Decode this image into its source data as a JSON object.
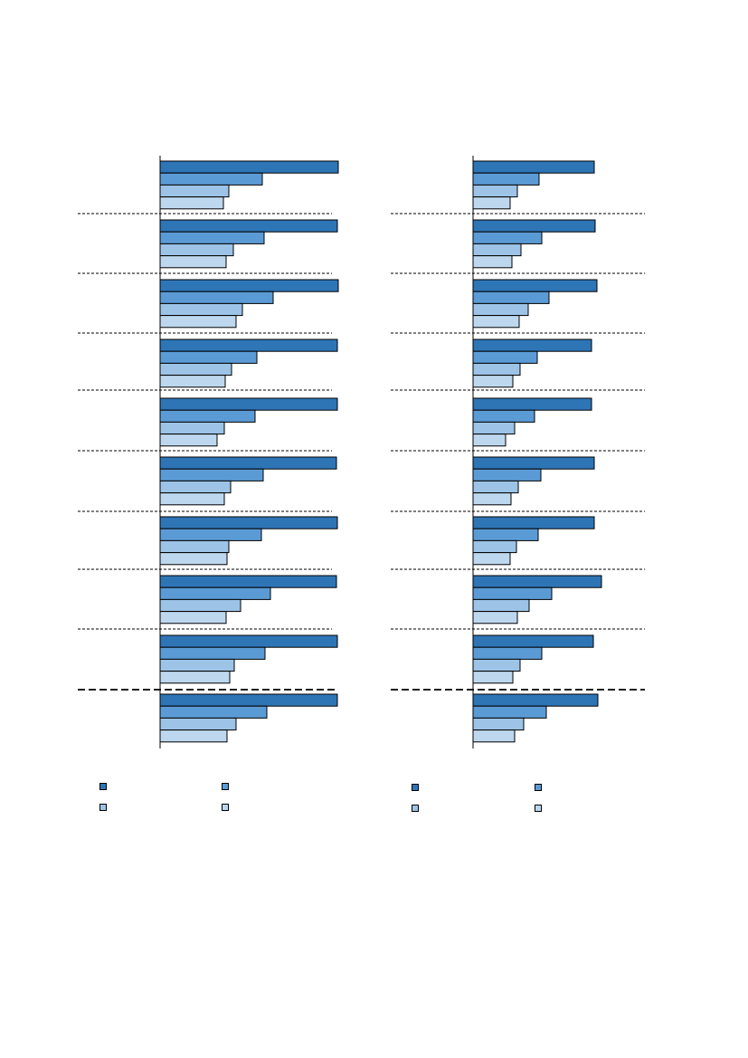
{
  "colors": [
    "#2e75b6",
    "#5b9bd5",
    "#9dc3e6",
    "#bdd7ee"
  ],
  "chart_data": [
    {
      "type": "bar",
      "orientation": "horizontal",
      "grid": false,
      "xlim": [
        0,
        200
      ],
      "group_count": 10,
      "series": [
        {
          "values": [
            197,
            196,
            197,
            196,
            196,
            195,
            196,
            195,
            196,
            196
          ]
        },
        {
          "values": [
            113,
            115,
            125,
            107,
            105,
            114,
            112,
            122,
            116,
            118
          ]
        },
        {
          "values": [
            76,
            81,
            91,
            79,
            71,
            78,
            76,
            89,
            82,
            84
          ]
        },
        {
          "values": [
            70,
            73,
            84,
            72,
            63,
            71,
            74,
            73,
            77,
            74
          ]
        }
      ],
      "legend": "bottom"
    },
    {
      "type": "bar",
      "orientation": "horizontal",
      "grid": false,
      "xlim": [
        0,
        200
      ],
      "group_count": 10,
      "series": [
        {
          "values": [
            134,
            135,
            137,
            131,
            131,
            134,
            134,
            142,
            133,
            138
          ]
        },
        {
          "values": [
            73,
            76,
            84,
            71,
            68,
            75,
            72,
            87,
            76,
            81
          ]
        },
        {
          "values": [
            49,
            53,
            61,
            52,
            46,
            50,
            48,
            62,
            52,
            56
          ]
        },
        {
          "values": [
            41,
            43,
            51,
            44,
            36,
            42,
            41,
            49,
            44,
            46
          ]
        }
      ],
      "legend": "bottom"
    }
  ]
}
